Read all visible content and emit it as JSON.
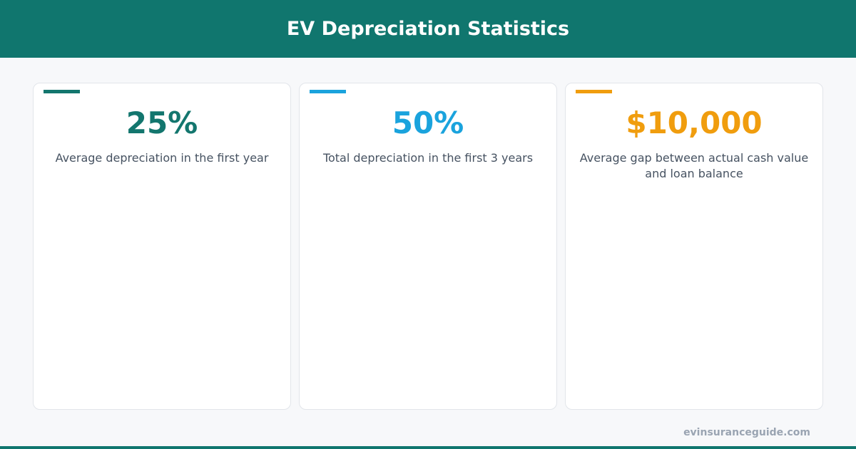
{
  "header": {
    "title": "EV Depreciation Statistics"
  },
  "cards": [
    {
      "value": "25%",
      "description": "Average depreciation in the first year",
      "color": "#13766e"
    },
    {
      "value": "50%",
      "description": "Total depreciation in the first 3 years",
      "color": "#1aa3dd"
    },
    {
      "value": "$10,000",
      "description": "Average gap between actual cash value and loan balance",
      "color": "#f09d0e"
    }
  ],
  "footer": {
    "source": "evinsuranceguide.com"
  }
}
